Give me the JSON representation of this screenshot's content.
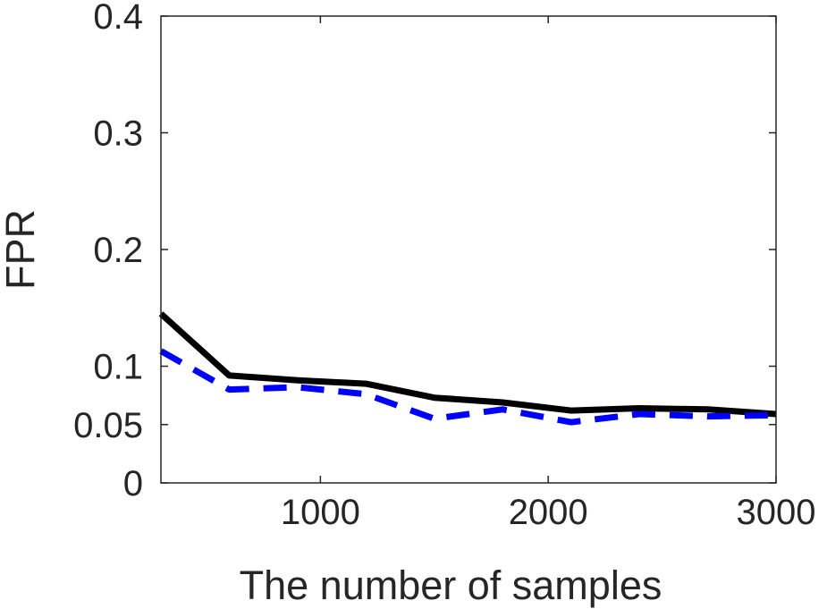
{
  "chart_data": {
    "type": "line",
    "title": "",
    "xlabel": "The number of samples",
    "ylabel": "FPR",
    "xlim": [
      300,
      3000
    ],
    "ylim": [
      0,
      0.4
    ],
    "xticks": [
      1000,
      2000,
      3000
    ],
    "xtick_labels": [
      "1000",
      "2000",
      "3000"
    ],
    "yticks": [
      0,
      0.05,
      0.1,
      0.2,
      0.3,
      0.4
    ],
    "ytick_labels": [
      "0",
      "0.05",
      "0.1",
      "0.2",
      "0.3",
      "0.4"
    ],
    "grid": false,
    "legend": false,
    "series": [
      {
        "color": "#000000",
        "line_style": "solid",
        "x": [
          300,
          600,
          900,
          1200,
          1500,
          1800,
          2100,
          2400,
          2700,
          3000
        ],
        "y": [
          0.145,
          0.092,
          0.088,
          0.085,
          0.073,
          0.069,
          0.062,
          0.064,
          0.063,
          0.059
        ]
      },
      {
        "color": "#0000ff",
        "line_style": "dashed",
        "x": [
          300,
          600,
          900,
          1200,
          1500,
          1800,
          2100,
          2400,
          2700,
          3000
        ],
        "y": [
          0.113,
          0.08,
          0.082,
          0.076,
          0.055,
          0.063,
          0.052,
          0.059,
          0.057,
          0.058
        ]
      }
    ]
  }
}
